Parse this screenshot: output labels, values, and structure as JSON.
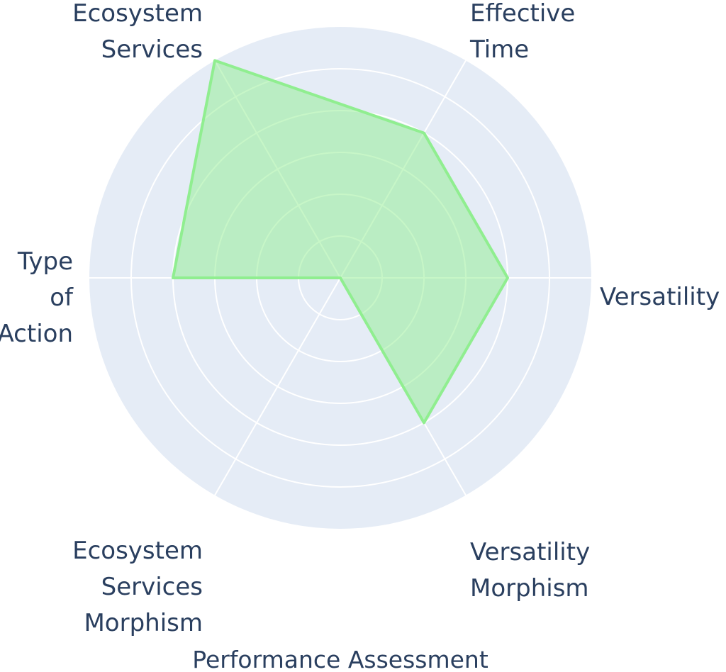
{
  "chart_data": {
    "type": "radar",
    "title": "Performance Assessment",
    "axes": [
      "Versatility",
      "Effective Time",
      "Ecosystem Services",
      "Type of Action",
      "Ecosystem Services Morphism",
      "Versatility Morphism"
    ],
    "series": [
      {
        "values": [
          4,
          4,
          6,
          4,
          0,
          4
        ]
      }
    ],
    "rlim": [
      0,
      6
    ],
    "radial_gridlines": [
      1,
      2,
      3,
      4,
      5,
      6
    ],
    "grid": true,
    "legend": "none",
    "colors": {
      "background": "#e5ecf6",
      "grid": "#ffffff",
      "series_line": "#90ee90",
      "series_fill": "#90ee90",
      "text": "#2a3f5f"
    }
  }
}
